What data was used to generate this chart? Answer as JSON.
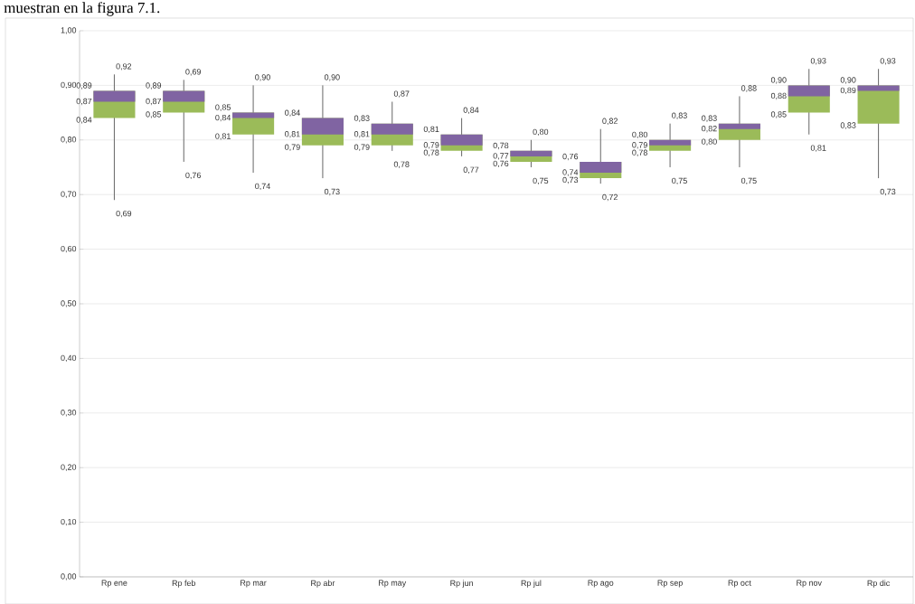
{
  "chart_data": {
    "type": "box",
    "categories": [
      "Rp ene",
      "Rp feb",
      "Rp mar",
      "Rp abr",
      "Rp may",
      "Rp jun",
      "Rp jul",
      "Rp ago",
      "Rp sep",
      "Rp oct",
      "Rp nov",
      "Rp dic"
    ],
    "boxes": [
      {
        "low": 0.69,
        "q1": 0.84,
        "median": 0.87,
        "q3": 0.89,
        "high": 0.92
      },
      {
        "low": 0.76,
        "q1": 0.85,
        "median": 0.87,
        "q3": 0.89,
        "high": 0.91
      },
      {
        "low": 0.74,
        "q1": 0.81,
        "median": 0.84,
        "q3": 0.85,
        "high": 0.9
      },
      {
        "low": 0.73,
        "q1": 0.79,
        "median": 0.81,
        "q3": 0.84,
        "high": 0.9
      },
      {
        "low": 0.78,
        "q1": 0.79,
        "median": 0.81,
        "q3": 0.83,
        "high": 0.87
      },
      {
        "low": 0.77,
        "q1": 0.78,
        "median": 0.79,
        "q3": 0.81,
        "high": 0.84
      },
      {
        "low": 0.75,
        "q1": 0.76,
        "median": 0.77,
        "q3": 0.78,
        "high": 0.8
      },
      {
        "low": 0.72,
        "q1": 0.73,
        "median": 0.74,
        "q3": 0.76,
        "high": 0.82
      },
      {
        "low": 0.75,
        "q1": 0.78,
        "median": 0.79,
        "q3": 0.8,
        "high": 0.83
      },
      {
        "low": 0.75,
        "q1": 0.8,
        "median": 0.82,
        "q3": 0.83,
        "high": 0.88
      },
      {
        "low": 0.81,
        "q1": 0.85,
        "median": 0.88,
        "q3": 0.9,
        "high": 0.93
      },
      {
        "low": 0.73,
        "q1": 0.83,
        "median": 0.89,
        "q3": 0.9,
        "high": 0.93
      }
    ],
    "colors": [
      "#9bbb59",
      "#9bbb59",
      "#9bbb59",
      "#9bbb59",
      "#9bbb59",
      "#9bbb59",
      "#9bbb59",
      "#9bbb59",
      "#9bbb59",
      "#9bbb59",
      "#9bbb59",
      "#9bbb59"
    ],
    "color": "#8064a2",
    "ylim": [
      0,
      1
    ],
    "yticks": [
      {
        "value": 0,
        "label": "0,00"
      },
      {
        "value": 0.1,
        "label": "0,10"
      },
      {
        "value": 0.2,
        "label": "0,20"
      },
      {
        "value": 0.3,
        "label": "0,30"
      },
      {
        "value": 0.4,
        "label": "0,40"
      },
      {
        "value": 0.5,
        "label": "0,50"
      },
      {
        "value": 0.6,
        "label": "0,60"
      },
      {
        "value": 0.7,
        "label": "0,70"
      },
      {
        "value": 0.8,
        "label": "0,80"
      },
      {
        "value": 0.9,
        "label": "0,90"
      },
      {
        "value": 1,
        "label": "1,00"
      }
    ],
    "grid": "y",
    "annotations": [
      "muestran en la figura 7.1.",
      {
        "text": "0,92",
        "x": "Rp ene",
        "y": 0.92
      },
      {
        "text": "0,89",
        "x": "Rp ene",
        "y": 0.89
      },
      {
        "text": "0,87",
        "x": "Rp ene",
        "y": 0.87
      },
      {
        "text": "0,84",
        "x": "Rp ene",
        "y": 0.84
      },
      {
        "text": "0,69",
        "x": "Rp ene",
        "y": 0.69
      },
      {
        "text": "0,69",
        "x": "Rp feb",
        "y": 0.91
      },
      {
        "text": "0,89",
        "x": "Rp feb",
        "y": 0.89
      },
      {
        "text": "0,87",
        "x": "Rp feb",
        "y": 0.87
      },
      {
        "text": "0,85",
        "x": "Rp feb",
        "y": 0.85
      },
      {
        "text": "0,76",
        "x": "Rp feb",
        "y": 0.76
      },
      {
        "text": "0,90",
        "x": "Rp mar",
        "y": 0.9
      },
      {
        "text": "0,85",
        "x": "Rp mar",
        "y": 0.85
      },
      {
        "text": "0,84",
        "x": "Rp mar",
        "y": 0.84
      },
      {
        "text": "0,81",
        "x": "Rp mar",
        "y": 0.81
      },
      {
        "text": "0,74",
        "x": "Rp mar",
        "y": 0.74
      },
      {
        "text": "0,90",
        "x": "Rp abr",
        "y": 0.9
      },
      {
        "text": "0,84",
        "x": "Rp abr",
        "y": 0.84
      },
      {
        "text": "0,81",
        "x": "Rp abr",
        "y": 0.81
      },
      {
        "text": "0,79",
        "x": "Rp abr",
        "y": 0.79
      },
      {
        "text": "0,73",
        "x": "Rp abr",
        "y": 0.73
      },
      {
        "text": "0,87",
        "x": "Rp may",
        "y": 0.87
      },
      {
        "text": "0,83",
        "x": "Rp may",
        "y": 0.83
      },
      {
        "text": "0,81",
        "x": "Rp may",
        "y": 0.81
      },
      {
        "text": "0,79",
        "x": "Rp may",
        "y": 0.79
      },
      {
        "text": "0,78",
        "x": "Rp may",
        "y": 0.78
      },
      {
        "text": "0,84",
        "x": "Rp jun",
        "y": 0.84
      },
      {
        "text": "0,81",
        "x": "Rp jun",
        "y": 0.81
      },
      {
        "text": "0,79",
        "x": "Rp jun",
        "y": 0.79
      },
      {
        "text": "0,78",
        "x": "Rp jun",
        "y": 0.78
      },
      {
        "text": "0,77",
        "x": "Rp jun",
        "y": 0.77
      },
      {
        "text": "0,80",
        "x": "Rp jul",
        "y": 0.8
      },
      {
        "text": "0,78",
        "x": "Rp jul",
        "y": 0.78
      },
      {
        "text": "0,77",
        "x": "Rp jul",
        "y": 0.77
      },
      {
        "text": "0,76",
        "x": "Rp jul",
        "y": 0.76
      },
      {
        "text": "0,75",
        "x": "Rp jul",
        "y": 0.75
      },
      {
        "text": "0,82",
        "x": "Rp ago",
        "y": 0.82
      },
      {
        "text": "0,76",
        "x": "Rp ago",
        "y": 0.76
      },
      {
        "text": "0,74",
        "x": "Rp ago",
        "y": 0.74
      },
      {
        "text": "0,73",
        "x": "Rp ago",
        "y": 0.73
      },
      {
        "text": "0,72",
        "x": "Rp ago",
        "y": 0.72
      },
      {
        "text": "0,83",
        "x": "Rp sep",
        "y": 0.83
      },
      {
        "text": "0,80",
        "x": "Rp sep",
        "y": 0.8
      },
      {
        "text": "0,79",
        "x": "Rp sep",
        "y": 0.79
      },
      {
        "text": "0,78",
        "x": "Rp sep",
        "y": 0.78
      },
      {
        "text": "0,75",
        "x": "Rp sep",
        "y": 0.75
      },
      {
        "text": "0,88",
        "x": "Rp oct",
        "y": 0.88
      },
      {
        "text": "0,83",
        "x": "Rp oct",
        "y": 0.83
      },
      {
        "text": "0,82",
        "x": "Rp oct",
        "y": 0.82
      },
      {
        "text": "0,80",
        "x": "Rp oct",
        "y": 0.8
      },
      {
        "text": "0,75",
        "x": "Rp oct",
        "y": 0.75
      },
      {
        "text": "0,93",
        "x": "Rp nov",
        "y": 0.93
      },
      {
        "text": "0,90",
        "x": "Rp nov",
        "y": 0.9
      },
      {
        "text": "0,88",
        "x": "Rp nov",
        "y": 0.88
      },
      {
        "text": "0,85",
        "x": "Rp nov",
        "y": 0.85
      },
      {
        "text": "0,81",
        "x": "Rp nov",
        "y": 0.81
      },
      {
        "text": "0,93",
        "x": "Rp dic",
        "y": 0.93
      },
      {
        "text": "0,90",
        "x": "Rp dic",
        "y": 0.9
      },
      {
        "text": "0,89",
        "x": "Rp dic",
        "y": 0.89
      },
      {
        "text": "0,83",
        "x": "Rp dic",
        "y": 0.83
      },
      {
        "text": "0,73",
        "x": "Rp dic",
        "y": 0.73
      }
    ]
  }
}
